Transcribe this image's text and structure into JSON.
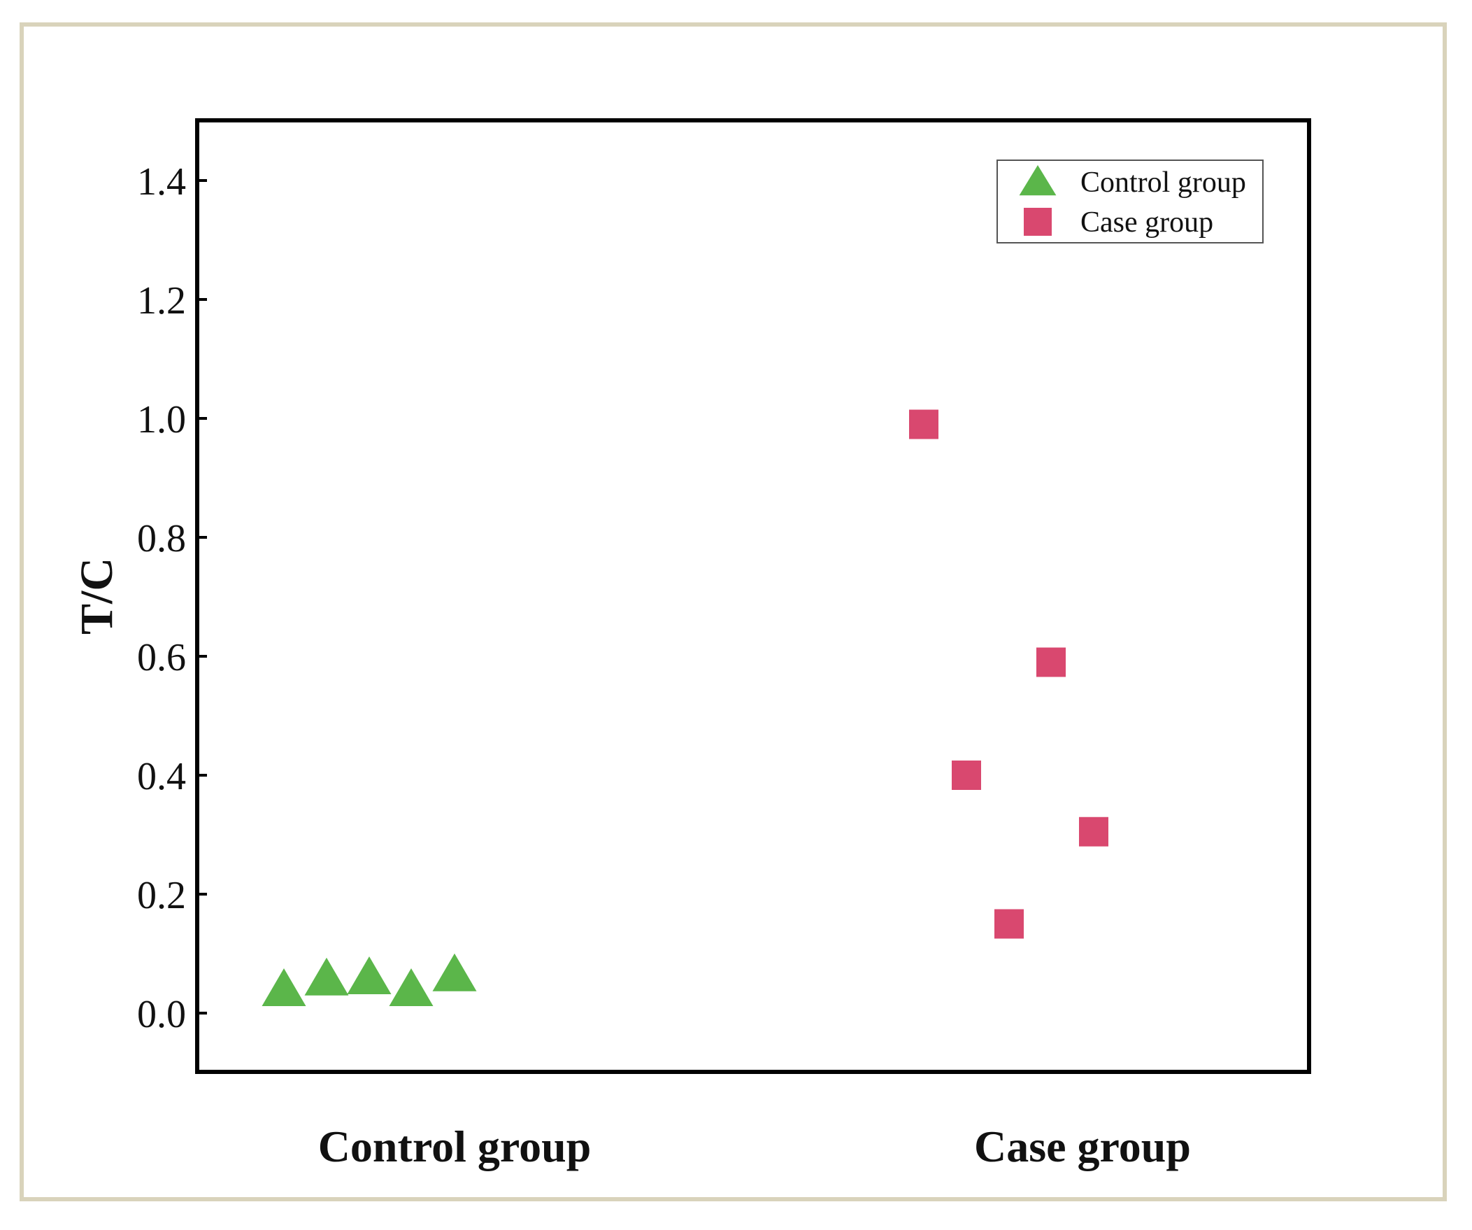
{
  "chart_data": {
    "type": "scatter",
    "title": "",
    "xlabel": "",
    "ylabel": "T/C",
    "ylim": [
      -0.1,
      1.5
    ],
    "yticks": [
      0.0,
      0.2,
      0.4,
      0.6,
      0.8,
      1.0,
      1.2,
      1.4
    ],
    "ytick_labels": [
      "0.0",
      "0.2",
      "0.4",
      "0.6",
      "0.8",
      "1.0",
      "1.2",
      "1.4"
    ],
    "categories": [
      "Control group",
      "Case group"
    ],
    "grid": false,
    "legend_position": "top-right",
    "series": [
      {
        "name": "Control group",
        "marker": "triangle",
        "color": "#5bb64a",
        "values": [
          0.04,
          0.058,
          0.06,
          0.04,
          0.065
        ]
      },
      {
        "name": "Case group",
        "marker": "square",
        "color": "#d9486f",
        "values": [
          0.99,
          0.4,
          0.15,
          0.59,
          0.305
        ]
      }
    ]
  }
}
